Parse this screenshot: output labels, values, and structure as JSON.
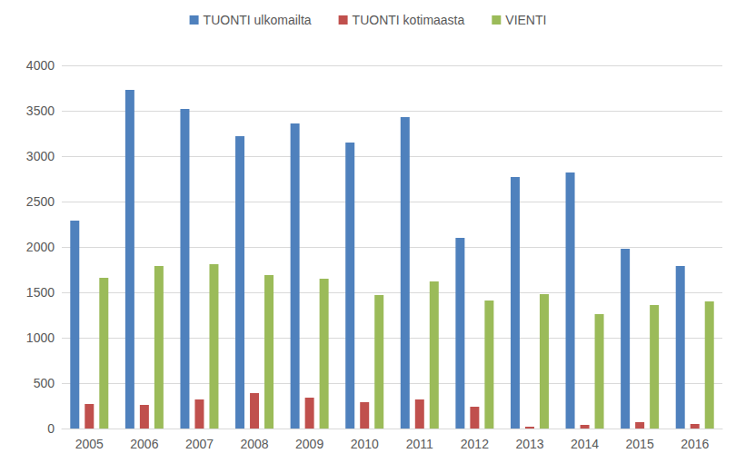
{
  "chart_data": {
    "type": "bar",
    "categories": [
      "2005",
      "2006",
      "2007",
      "2008",
      "2009",
      "2010",
      "2011",
      "2012",
      "2013",
      "2014",
      "2015",
      "2016"
    ],
    "series": [
      {
        "name": "TUONTI ulkomailta",
        "color": "#4f81bd",
        "values": [
          2290,
          3730,
          3520,
          3220,
          3360,
          3150,
          3430,
          2100,
          2770,
          2820,
          1980,
          1790
        ]
      },
      {
        "name": "TUONTI kotimaasta",
        "color": "#c0504d",
        "values": [
          270,
          260,
          320,
          390,
          340,
          290,
          320,
          240,
          20,
          40,
          70,
          50
        ]
      },
      {
        "name": "VIENTI",
        "color": "#9bbb59",
        "values": [
          1660,
          1790,
          1810,
          1690,
          1650,
          1470,
          1620,
          1410,
          1480,
          1260,
          1360,
          1400
        ]
      }
    ],
    "ylim": [
      0,
      4000
    ],
    "yticks": [
      0,
      500,
      1000,
      1500,
      2000,
      2500,
      3000,
      3500,
      4000
    ],
    "grid": true,
    "legend": "top"
  }
}
